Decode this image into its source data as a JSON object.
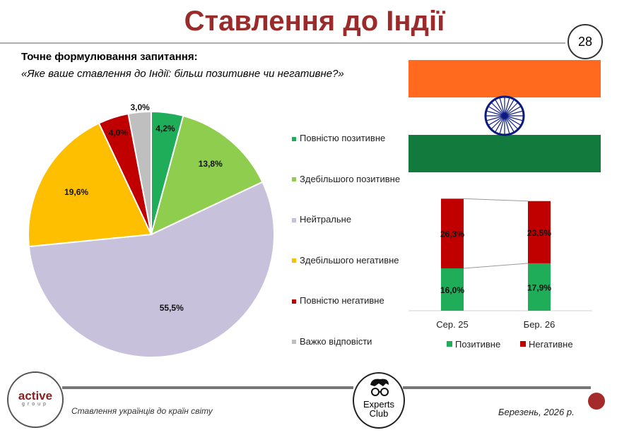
{
  "header": {
    "title": "Ставлення до Індії",
    "page_number": "28"
  },
  "question": {
    "label": "Точне формулювання запитання:",
    "text": "«Яке ваше ставлення до Індії: більш позитивне чи негативне?»"
  },
  "chart_data": [
    {
      "type": "pie",
      "title": "",
      "start": "top",
      "direction": "clockwise",
      "slices": [
        {
          "label": "Повністю позитивне",
          "value": 4.2,
          "display": "4,2%",
          "color": "#1fad5a"
        },
        {
          "label": "Здебільшого позитивне",
          "value": 13.8,
          "display": "13,8%",
          "color": "#8fcd4f"
        },
        {
          "label": "Нейтральне",
          "value": 55.5,
          "display": "55,5%",
          "color": "#c8c1db"
        },
        {
          "label": "Здебільшого негативне",
          "value": 19.6,
          "display": "19,6%",
          "color": "#fdbf00"
        },
        {
          "label": "Повністю негативне",
          "value": 4.0,
          "display": "4,0%",
          "color": "#c00000"
        },
        {
          "label": "Важко відповісти",
          "value": 3.0,
          "display": "3,0%",
          "color": "#bfbfbf"
        }
      ],
      "legend_position": "right"
    },
    {
      "type": "bar",
      "stacked": true,
      "categories": [
        "Сер. 25",
        "Бер. 26"
      ],
      "series": [
        {
          "name": "Позитивне",
          "values": [
            16.0,
            17.9
          ],
          "display": [
            "16,0%",
            "17,9%"
          ],
          "color": "#1fad5a"
        },
        {
          "name": "Негативне",
          "values": [
            26.3,
            23.5
          ],
          "display": [
            "26,3%",
            "23,5%"
          ],
          "color": "#c00000"
        }
      ],
      "legend_position": "bottom"
    }
  ],
  "flag": {
    "top": "#ff6a1f",
    "middle": "#ffffff",
    "bottom": "#127a3c",
    "chakra": "#0a1a80"
  },
  "footer": {
    "logo_left": "active",
    "logo_left_sub": "group",
    "subtitle": "Ставлення українців до країн світу",
    "logo_center": "Experts Club",
    "logo_center_line1": "Experts",
    "logo_center_line2": "Club",
    "date": "Березень, 2026 р."
  },
  "colors": {
    "accent": "#9b2b2b"
  }
}
